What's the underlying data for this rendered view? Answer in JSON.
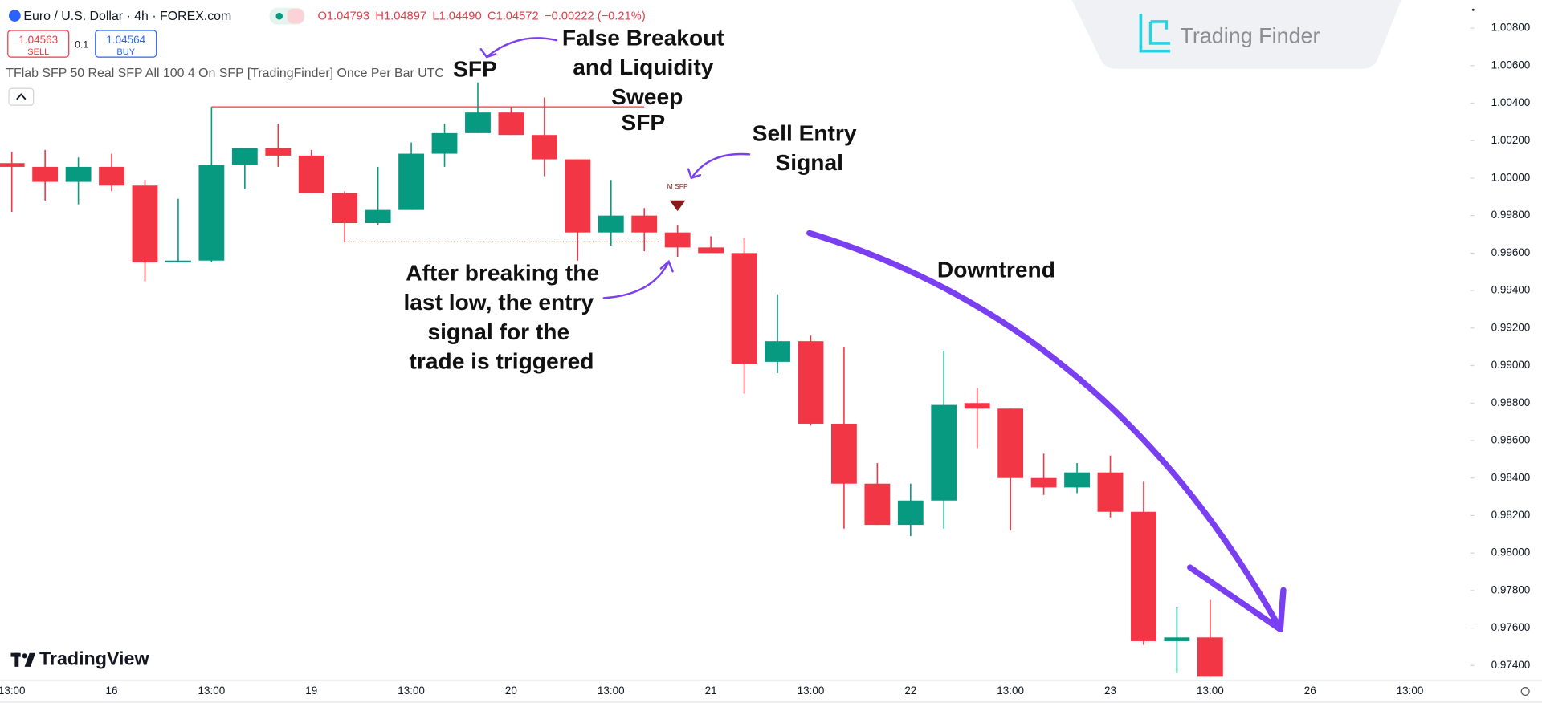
{
  "header": {
    "title": "Euro / U.S. Dollar · 4h · FOREX.com",
    "ohlc": [
      "O1.04793",
      "H1.04897",
      "L1.04490",
      "C1.04572",
      "−0.00222 (−0.21%)"
    ],
    "sell_price": "1.04563",
    "sell_label": "SELL",
    "lot": "0.1",
    "buy_price": "1.04564",
    "buy_label": "BUY",
    "indicator": "TFlab SFP 50 Real SFP All 100 4 On SFP [TradingFinder] Once Per Bar UTC"
  },
  "brand": {
    "watermark": "Trading Finder",
    "platform": "TradingView"
  },
  "chart_data": {
    "type": "candlestick",
    "categories": [
      "13:00",
      null,
      null,
      "16",
      null,
      null,
      "13:00",
      null,
      null,
      "19",
      null,
      null,
      "13:00",
      null,
      null,
      "20",
      null,
      null,
      "13:00",
      null,
      null,
      "21",
      null,
      null,
      "13:00",
      null,
      null,
      "22",
      null,
      null,
      "13:00",
      null,
      null,
      "23",
      null,
      null,
      "13:00",
      null,
      null,
      "26",
      null,
      null,
      "13:00",
      null
    ],
    "open": [
      1.0008,
      1.0006,
      0.9998,
      1.0006,
      0.9996,
      0.9955,
      0.9956,
      1.0007,
      1.0016,
      1.0012,
      0.9992,
      0.9976,
      0.9983,
      1.0013,
      1.0024,
      1.0035,
      1.0023,
      1.001,
      0.9971,
      0.998,
      0.9971,
      0.9963,
      0.996,
      0.9902,
      0.9913,
      0.9869,
      0.9837,
      0.9815,
      0.9828,
      0.988,
      0.9877,
      0.984,
      0.9835,
      0.9843,
      0.9822,
      0.9753,
      0.9755,
      null,
      null,
      null,
      null,
      null,
      null,
      null
    ],
    "high": [
      1.0014,
      1.0015,
      1.0011,
      1.0013,
      0.9999,
      0.9989,
      1.0038,
      1.0016,
      1.0029,
      1.0015,
      0.9993,
      1.0006,
      1.0019,
      1.0029,
      1.0051,
      1.0038,
      1.0043,
      1.001,
      0.9999,
      0.9984,
      0.9975,
      0.9969,
      0.9968,
      0.9938,
      0.9916,
      0.991,
      0.9848,
      0.9837,
      0.9908,
      0.9888,
      0.9877,
      0.9853,
      0.9848,
      0.9852,
      0.9838,
      0.9771,
      0.9775,
      null,
      null,
      null,
      null,
      null,
      null,
      null
    ],
    "low": [
      0.9982,
      0.9988,
      0.9986,
      0.9993,
      0.9945,
      0.9955,
      0.9955,
      0.9994,
      1.0006,
      0.9992,
      0.9966,
      0.9975,
      0.9983,
      1.0006,
      1.0024,
      1.0023,
      1.0001,
      0.9956,
      0.9964,
      0.9961,
      0.9958,
      0.996,
      0.9885,
      0.9896,
      0.9868,
      0.9813,
      0.9815,
      0.9809,
      0.9813,
      0.9856,
      0.9812,
      0.9831,
      0.9832,
      0.9819,
      0.9751,
      0.9736,
      0.9734,
      null,
      null,
      null,
      null,
      null,
      null,
      null
    ],
    "close": [
      1.0006,
      0.9998,
      1.0006,
      0.9996,
      0.9955,
      0.9956,
      1.0007,
      1.0016,
      1.0012,
      0.9992,
      0.9976,
      0.9983,
      1.0013,
      1.0024,
      1.0035,
      1.0023,
      1.001,
      0.9971,
      0.998,
      0.9971,
      0.9963,
      0.996,
      0.9901,
      0.9913,
      0.9869,
      0.9837,
      0.9815,
      0.9828,
      0.9879,
      0.9877,
      0.984,
      0.9835,
      0.9843,
      0.9822,
      0.9753,
      0.9755,
      0.9734,
      null,
      null,
      null,
      null,
      null,
      null,
      null
    ],
    "up_color": "#089981",
    "down_color": "#f23645",
    "ylim": [
      0.9732,
      1.0095
    ],
    "yticks": [
      {
        "value": 1.008,
        "label": "1.00800"
      },
      {
        "value": 1.006,
        "label": "1.00600"
      },
      {
        "value": 1.004,
        "label": "1.00400"
      },
      {
        "value": 1.002,
        "label": "1.00200"
      },
      {
        "value": 1.0,
        "label": "1.00000"
      },
      {
        "value": 0.998,
        "label": "0.99800"
      },
      {
        "value": 0.996,
        "label": "0.99600"
      },
      {
        "value": 0.994,
        "label": "0.99400"
      },
      {
        "value": 0.992,
        "label": "0.99200"
      },
      {
        "value": 0.99,
        "label": "0.99000"
      },
      {
        "value": 0.988,
        "label": "0.98800"
      },
      {
        "value": 0.986,
        "label": "0.98600"
      },
      {
        "value": 0.984,
        "label": "0.98400"
      },
      {
        "value": 0.982,
        "label": "0.98200"
      },
      {
        "value": 0.98,
        "label": "0.98000"
      },
      {
        "value": 0.978,
        "label": "0.97800"
      },
      {
        "value": 0.976,
        "label": "0.97600"
      },
      {
        "value": 0.974,
        "label": "0.97400"
      }
    ],
    "signal_label": "M SFP",
    "annotations": {
      "sfp": "SFP",
      "false_breakout": [
        "False Breakout",
        "and Liquidity",
        "Sweep",
        "SFP"
      ],
      "sell_entry": [
        "Sell Entry",
        "Signal"
      ],
      "entry_note": [
        "After breaking the",
        "last low, the entry",
        "signal for the",
        "trade is triggered"
      ],
      "downtrend": "Downtrend"
    }
  }
}
